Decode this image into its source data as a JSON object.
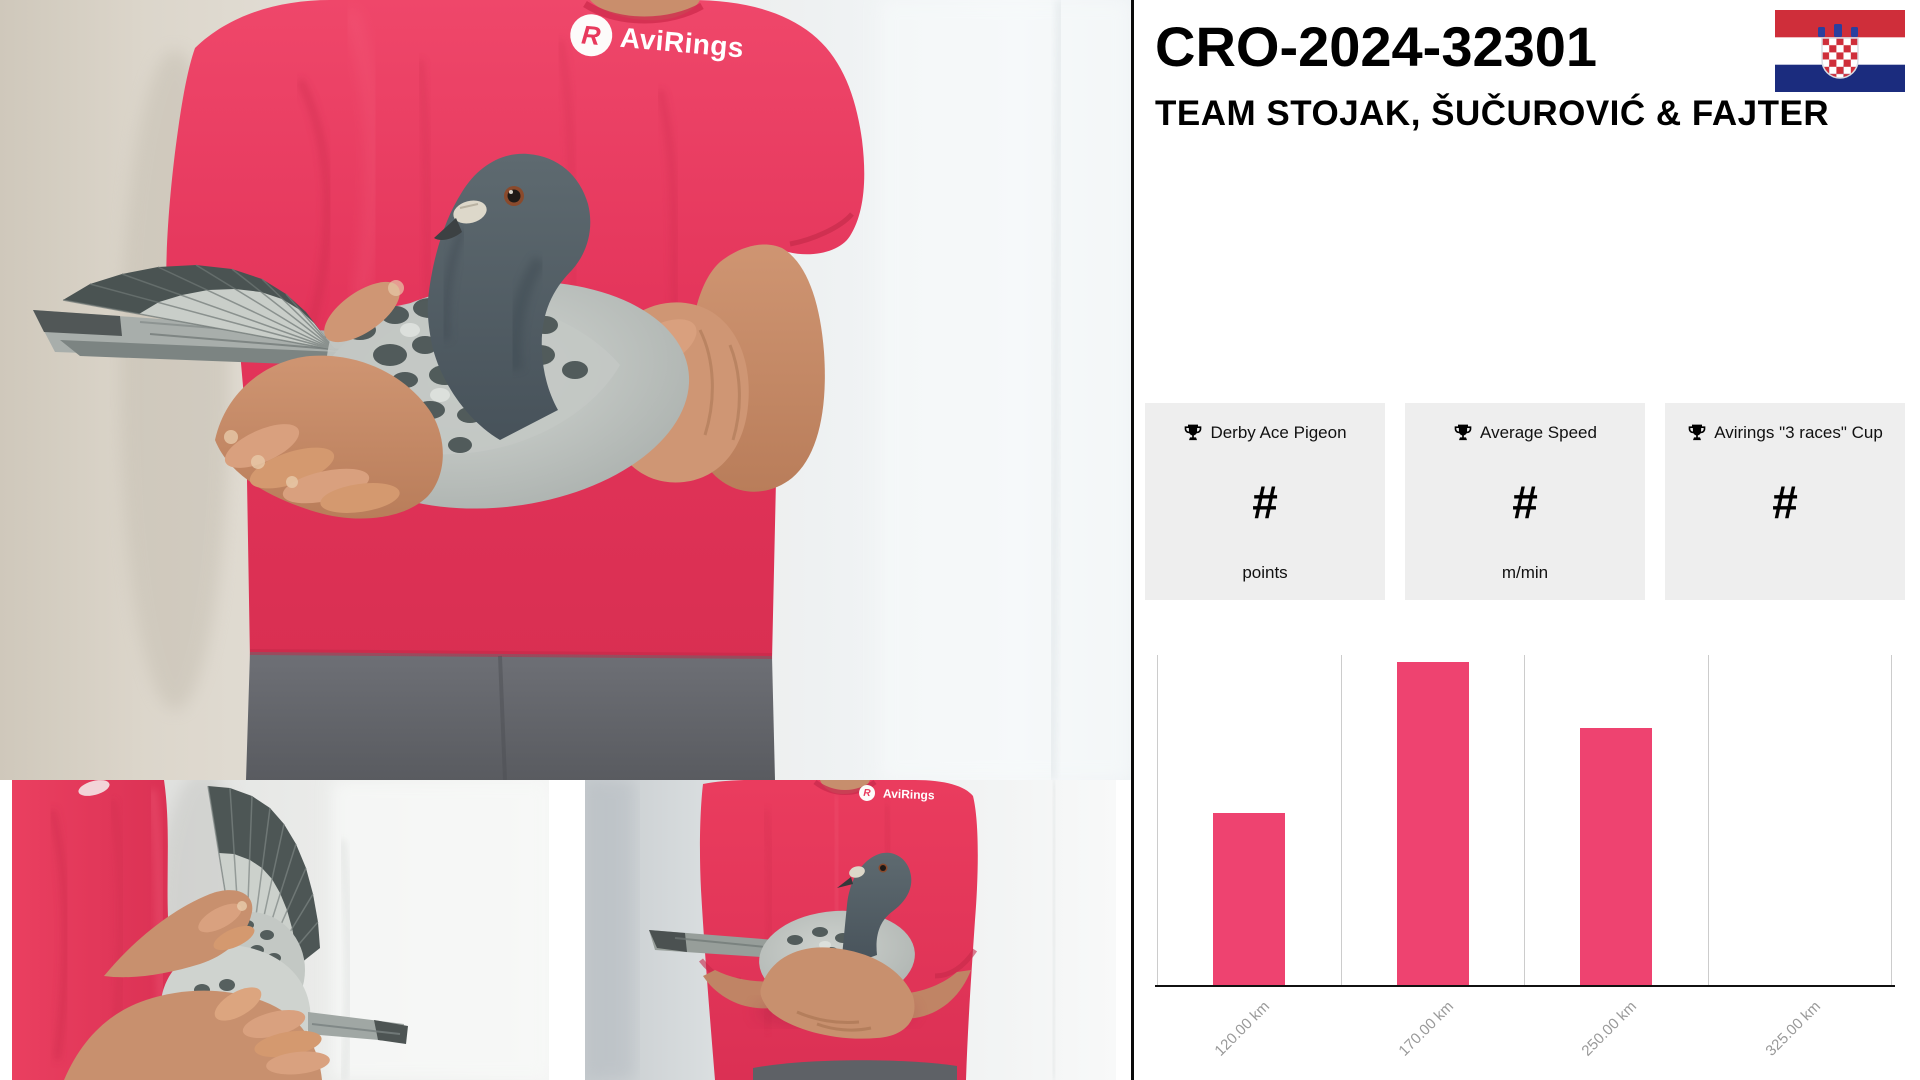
{
  "header": {
    "ring_number": "CRO-2024-32301",
    "team": "TEAM STOJAK, ŠUČUROVIĆ & FAJTER",
    "flag": "croatia"
  },
  "branding": {
    "logo_text": "AviRings",
    "logo_initial": "R"
  },
  "stats": {
    "cards": [
      {
        "icon": "trophy-icon",
        "label": "Derby Ace Pigeon",
        "value": "#",
        "unit": "points"
      },
      {
        "icon": "trophy-icon",
        "label": "Average Speed",
        "value": "#",
        "unit": "m/min"
      },
      {
        "icon": "trophy-icon",
        "label": "Avirings \"3 races\" Cup",
        "value": "#",
        "unit": ""
      }
    ]
  },
  "chart_data": {
    "type": "bar",
    "title": "",
    "xlabel": "",
    "ylabel": "",
    "categories": [
      "120.00 km",
      "170.00 km",
      "250.00 km",
      "325.00 km"
    ],
    "values": [
      52,
      98,
      78,
      0
    ],
    "value_note": "no y-axis shown; values are relative bar heights in % of plot height",
    "ylim": [
      0,
      100
    ],
    "bar_color": "#ee4370",
    "grid": "vertical category separators only",
    "legend": "none"
  },
  "colors": {
    "accent_pink": "#ee4370",
    "shirt_pink": "#e93a5e",
    "card_background": "#eeeeee",
    "tick_label_gray": "#999999",
    "gridline_gray": "#cccccc"
  }
}
